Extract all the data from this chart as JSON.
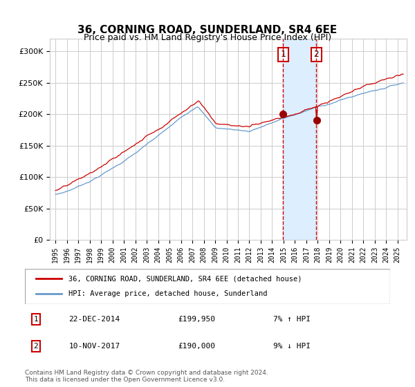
{
  "title": "36, CORNING ROAD, SUNDERLAND, SR4 6EE",
  "subtitle": "Price paid vs. HM Land Registry's House Price Index (HPI)",
  "sale1_date": "22-DEC-2014",
  "sale1_price": 199950,
  "sale1_label": "1",
  "sale1_pct": "7% ↑ HPI",
  "sale2_date": "10-NOV-2017",
  "sale2_price": 190000,
  "sale2_label": "2",
  "sale2_pct": "9% ↓ HPI",
  "legend_line1": "36, CORNING ROAD, SUNDERLAND, SR4 6EE (detached house)",
  "legend_line2": "HPI: Average price, detached house, Sunderland",
  "footnote": "Contains HM Land Registry data © Crown copyright and database right 2024.\nThis data is licensed under the Open Government Licence v3.0.",
  "hpi_color": "#6699cc",
  "price_color": "#cc0000",
  "dot_color": "#990000",
  "shade_color": "#ddeeff",
  "vline_color": "#cc0000",
  "grid_color": "#cccccc",
  "bg_color": "#ffffff",
  "ylim": [
    0,
    320000
  ],
  "yticks": [
    0,
    50000,
    100000,
    150000,
    200000,
    250000,
    300000
  ],
  "sale1_year": 2014.97,
  "sale2_year": 2017.86
}
